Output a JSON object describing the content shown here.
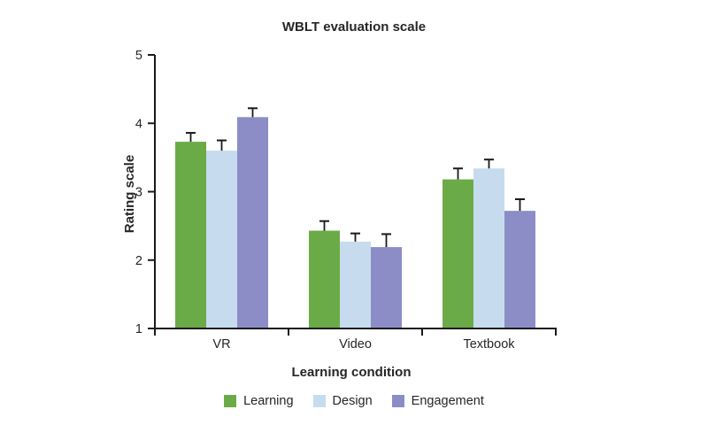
{
  "chart_data": {
    "type": "bar",
    "title": "WBLT evaluation scale",
    "xlabel": "Learning condition",
    "ylabel": "Rating scale",
    "categories": [
      "VR",
      "Video",
      "Textbook"
    ],
    "series": [
      {
        "name": "Learning",
        "color": "#6BAB47",
        "values": [
          3.73,
          2.43,
          3.18
        ],
        "errors": [
          0.13,
          0.14,
          0.16
        ]
      },
      {
        "name": "Design",
        "color": "#C6DCEE",
        "values": [
          3.6,
          2.27,
          3.34
        ],
        "errors": [
          0.15,
          0.12,
          0.13
        ]
      },
      {
        "name": "Engagement",
        "color": "#8C8DC6",
        "values": [
          4.09,
          2.19,
          2.72
        ],
        "errors": [
          0.13,
          0.19,
          0.17
        ]
      }
    ],
    "ylim": [
      1,
      5
    ],
    "yticks": [
      1,
      2,
      3,
      4,
      5
    ],
    "error_bars": "upper",
    "legend_position": "bottom",
    "grid": false,
    "colors": {
      "axis": "#1a1a1a",
      "text": "#262626",
      "background": "#ffffff"
    }
  }
}
